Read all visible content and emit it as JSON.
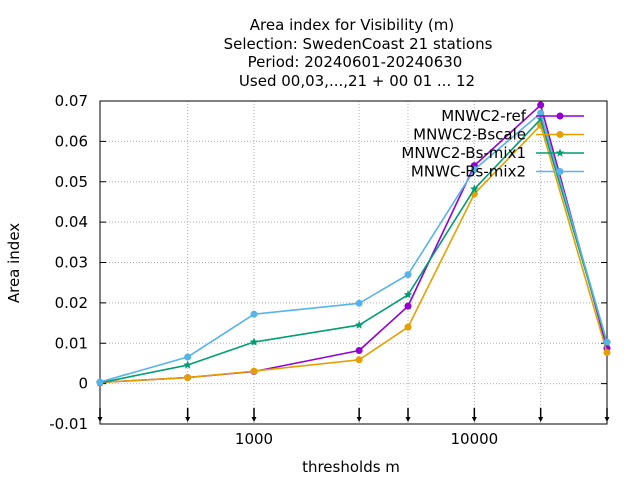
{
  "chart_data": {
    "type": "line",
    "title_lines": [
      "Area index  for Visibility (m)",
      "Selection: SwedenCoast     21 stations",
      "Period: 20240601-20240630",
      "Used 00,03,...,21 + 00 01 ... 12"
    ],
    "xlabel": "thresholds m",
    "ylabel": "Area index",
    "x_scale": "log",
    "xlim": [
      200,
      40000
    ],
    "ylim": [
      -0.01,
      0.07
    ],
    "y_ticks": [
      -0.01,
      0,
      0.01,
      0.02,
      0.03,
      0.04,
      0.05,
      0.06,
      0.07
    ],
    "y_tick_labels": [
      "-0.01",
      "0",
      "0.01",
      "0.02",
      "0.03",
      "0.04",
      "0.05",
      "0.06",
      "0.07"
    ],
    "x_ticks": [
      1000,
      10000
    ],
    "x_tick_labels": [
      "1000",
      "10000"
    ],
    "threshold_markers": [
      200,
      500,
      1000,
      3000,
      5000,
      10000,
      20000,
      40000
    ],
    "grid": true,
    "legend_position": "top-right",
    "series": [
      {
        "name": "MNWC2-ref",
        "color": "#9400d3",
        "marker": "circle",
        "x": [
          200,
          500,
          1000,
          3000,
          5000,
          10000,
          20000,
          40000
        ],
        "y": [
          0.0003,
          0.0015,
          0.003,
          0.0082,
          0.0192,
          0.054,
          0.069,
          0.0088
        ]
      },
      {
        "name": "MNWC2-Bscale",
        "color": "#e69f00",
        "marker": "circle",
        "x": [
          200,
          500,
          1000,
          3000,
          5000,
          10000,
          20000,
          40000
        ],
        "y": [
          0.0003,
          0.0015,
          0.0031,
          0.0059,
          0.014,
          0.047,
          0.064,
          0.0077
        ]
      },
      {
        "name": "MNWC2-Bs-mix1",
        "color": "#009e73",
        "marker": "star",
        "x": [
          200,
          500,
          1000,
          3000,
          5000,
          10000,
          20000,
          40000
        ],
        "y": [
          0.0002,
          0.0046,
          0.0103,
          0.0145,
          0.022,
          0.0482,
          0.0655,
          0.01
        ]
      },
      {
        "name": "MNWC-Bs-mix2",
        "color": "#56b4e9",
        "marker": "circle",
        "x": [
          200,
          500,
          1000,
          3000,
          5000,
          10000,
          20000,
          40000
        ],
        "y": [
          0.0004,
          0.0066,
          0.0172,
          0.0199,
          0.027,
          0.053,
          0.067,
          0.0103
        ]
      }
    ]
  }
}
